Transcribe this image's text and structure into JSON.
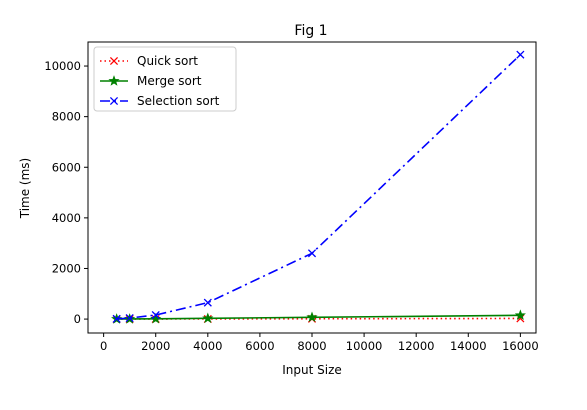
{
  "chart_data": {
    "type": "line",
    "title": "Fig 1",
    "xlabel": "Input Size",
    "ylabel": "Time (ms)",
    "xlim": [
      -600,
      16600
    ],
    "ylim": [
      -550,
      10950
    ],
    "xticks": [
      0,
      2000,
      4000,
      6000,
      8000,
      10000,
      12000,
      14000,
      16000
    ],
    "yticks": [
      0,
      2000,
      4000,
      6000,
      8000,
      10000
    ],
    "grid": false,
    "legend_position": "top-left",
    "series": [
      {
        "name": "Quick sort",
        "color": "#ff0000",
        "line_style": "dotted",
        "marker": "x",
        "x": [
          500,
          1000,
          2000,
          4000,
          8000,
          16000
        ],
        "y": [
          0,
          1,
          2,
          5,
          12,
          25
        ]
      },
      {
        "name": "Merge sort",
        "color": "#008000",
        "line_style": "solid",
        "marker": "star",
        "x": [
          500,
          1000,
          2000,
          4000,
          8000,
          16000
        ],
        "y": [
          2,
          5,
          10,
          30,
          70,
          150
        ]
      },
      {
        "name": "Selection sort",
        "color": "#0000ff",
        "line_style": "dashdot",
        "marker": "x",
        "x": [
          500,
          1000,
          2000,
          4000,
          8000,
          16000
        ],
        "y": [
          10,
          40,
          160,
          650,
          2600,
          10450
        ]
      }
    ]
  }
}
